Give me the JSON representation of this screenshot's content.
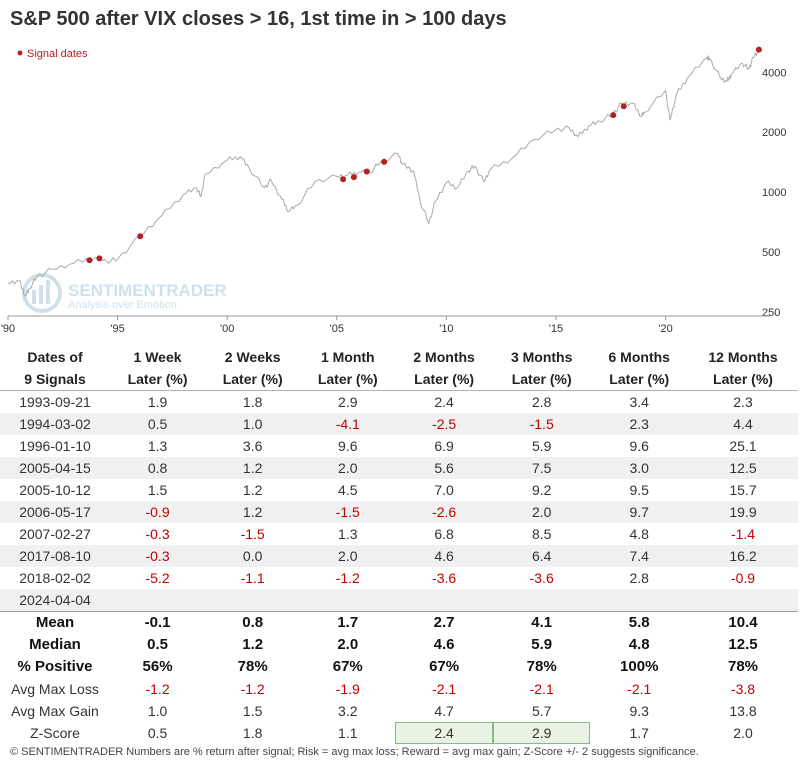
{
  "title": "S&P 500 after VIX closes > 16, 1st time in > 100 days",
  "watermark": {
    "brand": "SENTIMENTRADER",
    "tagline": "Analysis over Emotion"
  },
  "chart_data": {
    "type": "line",
    "title": "S&P 500 after VIX closes > 16, 1st time in > 100 days",
    "y_scale": "log",
    "ylim": [
      250,
      5300
    ],
    "y_ticks": [
      250,
      500,
      1000,
      2000,
      4000
    ],
    "xlim": [
      1990,
      2024.4
    ],
    "x_ticks": [
      {
        "value": 1990,
        "label": "'90"
      },
      {
        "value": 1995,
        "label": "'95"
      },
      {
        "value": 2000,
        "label": "'00"
      },
      {
        "value": 2005,
        "label": "'05"
      },
      {
        "value": 2010,
        "label": "'10"
      },
      {
        "value": 2015,
        "label": "'15"
      },
      {
        "value": 2020,
        "label": "'20"
      }
    ],
    "grid": false,
    "legend": {
      "position": "top-left",
      "entries": [
        "Signal dates"
      ]
    },
    "series": [
      {
        "points": [
          [
            1990.0,
            350
          ],
          [
            1990.5,
            360
          ],
          [
            1990.8,
            300
          ],
          [
            1991.0,
            330
          ],
          [
            1991.3,
            375
          ],
          [
            1992.0,
            410
          ],
          [
            1993.0,
            440
          ],
          [
            1994.0,
            470
          ],
          [
            1994.5,
            450
          ],
          [
            1995.0,
            460
          ],
          [
            1996.0,
            600
          ],
          [
            1997.0,
            760
          ],
          [
            1998.0,
            970
          ],
          [
            1998.6,
            1050
          ],
          [
            1998.8,
            950
          ],
          [
            1999.0,
            1230
          ],
          [
            2000.0,
            1450
          ],
          [
            2000.6,
            1510
          ],
          [
            2001.0,
            1320
          ],
          [
            2001.7,
            1050
          ],
          [
            2002.0,
            1150
          ],
          [
            2002.5,
            920
          ],
          [
            2002.8,
            800
          ],
          [
            2003.2,
            860
          ],
          [
            2004.0,
            1130
          ],
          [
            2005.0,
            1200
          ],
          [
            2005.5,
            1220
          ],
          [
            2006.0,
            1260
          ],
          [
            2006.5,
            1250
          ],
          [
            2007.0,
            1420
          ],
          [
            2007.8,
            1560
          ],
          [
            2008.0,
            1380
          ],
          [
            2008.5,
            1280
          ],
          [
            2008.8,
            900
          ],
          [
            2009.2,
            700
          ],
          [
            2009.5,
            900
          ],
          [
            2010.0,
            1120
          ],
          [
            2010.5,
            1050
          ],
          [
            2011.0,
            1280
          ],
          [
            2011.3,
            1350
          ],
          [
            2011.7,
            1130
          ],
          [
            2012.0,
            1300
          ],
          [
            2013.0,
            1480
          ],
          [
            2014.0,
            1840
          ],
          [
            2015.0,
            2060
          ],
          [
            2015.6,
            2100
          ],
          [
            2016.0,
            1900
          ],
          [
            2016.5,
            2150
          ],
          [
            2017.0,
            2270
          ],
          [
            2017.6,
            2470
          ],
          [
            2018.0,
            2800
          ],
          [
            2018.5,
            2800
          ],
          [
            2018.9,
            2400
          ],
          [
            2019.0,
            2500
          ],
          [
            2020.0,
            3240
          ],
          [
            2020.2,
            2300
          ],
          [
            2020.5,
            3100
          ],
          [
            2021.0,
            3750
          ],
          [
            2021.9,
            4750
          ],
          [
            2022.0,
            4700
          ],
          [
            2022.5,
            3750
          ],
          [
            2022.8,
            3600
          ],
          [
            2023.0,
            3900
          ],
          [
            2023.5,
            4450
          ],
          [
            2023.8,
            4150
          ],
          [
            2024.0,
            4750
          ],
          [
            2024.25,
            5200
          ]
        ]
      }
    ],
    "signals": [
      {
        "x": 1993.72,
        "y": 455
      },
      {
        "x": 1994.17,
        "y": 465
      },
      {
        "x": 1996.03,
        "y": 600
      },
      {
        "x": 2005.29,
        "y": 1160
      },
      {
        "x": 2005.78,
        "y": 1190
      },
      {
        "x": 2006.37,
        "y": 1270
      },
      {
        "x": 2007.16,
        "y": 1420
      },
      {
        "x": 2017.61,
        "y": 2440
      },
      {
        "x": 2018.09,
        "y": 2700
      },
      {
        "x": 2024.26,
        "y": 5200
      }
    ]
  },
  "table": {
    "headers": [
      [
        "Dates of",
        "9 Signals"
      ],
      [
        "1 Week",
        "Later (%)"
      ],
      [
        "2 Weeks",
        "Later (%)"
      ],
      [
        "1 Month",
        "Later (%)"
      ],
      [
        "2 Months",
        "Later (%)"
      ],
      [
        "3 Months",
        "Later (%)"
      ],
      [
        "6 Months",
        "Later (%)"
      ],
      [
        "12 Months",
        "Later (%)"
      ]
    ],
    "rows": [
      [
        "1993-09-21",
        "1.9",
        "1.8",
        "2.9",
        "2.4",
        "2.8",
        "3.4",
        "2.3"
      ],
      [
        "1994-03-02",
        "0.5",
        "1.0",
        "-4.1",
        "-2.5",
        "-1.5",
        "2.3",
        "4.4"
      ],
      [
        "1996-01-10",
        "1.3",
        "3.6",
        "9.6",
        "6.9",
        "5.9",
        "9.6",
        "25.1"
      ],
      [
        "2005-04-15",
        "0.8",
        "1.2",
        "2.0",
        "5.6",
        "7.5",
        "3.0",
        "12.5"
      ],
      [
        "2005-10-12",
        "1.5",
        "1.2",
        "4.5",
        "7.0",
        "9.2",
        "9.5",
        "15.7"
      ],
      [
        "2006-05-17",
        "-0.9",
        "1.2",
        "-1.5",
        "-2.6",
        "2.0",
        "9.7",
        "19.9"
      ],
      [
        "2007-02-27",
        "-0.3",
        "-1.5",
        "1.3",
        "6.8",
        "8.5",
        "4.8",
        "-1.4"
      ],
      [
        "2017-08-10",
        "-0.3",
        "0.0",
        "2.0",
        "4.6",
        "6.4",
        "7.4",
        "16.2"
      ],
      [
        "2018-02-02",
        "-5.2",
        "-1.1",
        "-1.2",
        "-3.6",
        "-3.6",
        "2.8",
        "-0.9"
      ],
      [
        "2024-04-04",
        "",
        "",
        "",
        "",
        "",
        "",
        ""
      ]
    ],
    "summary": [
      {
        "label": "Mean",
        "bold": true,
        "values": [
          "-0.1",
          "0.8",
          "1.7",
          "2.7",
          "4.1",
          "5.8",
          "10.4"
        ]
      },
      {
        "label": "Median",
        "bold": true,
        "values": [
          "0.5",
          "1.2",
          "2.0",
          "4.6",
          "5.9",
          "4.8",
          "12.5"
        ]
      },
      {
        "label": "% Positive",
        "bold": true,
        "values": [
          "56%",
          "78%",
          "67%",
          "67%",
          "78%",
          "100%",
          "78%"
        ]
      },
      {
        "label": "Avg Max Loss",
        "bold": false,
        "values": [
          "-1.2",
          "-1.2",
          "-1.9",
          "-2.1",
          "-2.1",
          "-2.1",
          "-3.8"
        ]
      },
      {
        "label": "Avg Max Gain",
        "bold": false,
        "values": [
          "1.0",
          "1.5",
          "3.2",
          "4.7",
          "5.7",
          "9.3",
          "13.8"
        ]
      },
      {
        "label": "Z-Score",
        "bold": false,
        "values": [
          "0.5",
          "1.8",
          "1.1",
          "2.4",
          "2.9",
          "1.7",
          "2.0"
        ],
        "highlight": [
          3,
          4
        ]
      }
    ]
  },
  "footer": "© SENTIMENTRADER  Numbers are % return after signal; Risk = avg max loss; Reward = avg max gain; Z-Score +/- 2 suggests significance.",
  "colors": {
    "line": "#aaaaaa",
    "signal": "#b22222",
    "negative": "#c00000",
    "highlight_fill": "#e8f3e3",
    "highlight_border": "#7fc07f"
  }
}
